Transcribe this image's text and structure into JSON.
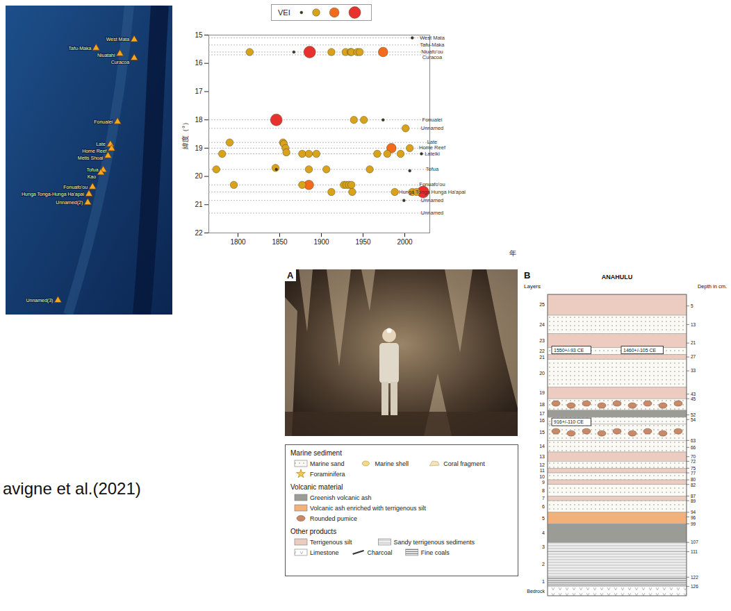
{
  "map": {
    "xlim": [
      -178.5,
      -171.5
    ],
    "ylim": [
      13.9,
      24.8
    ],
    "volcanoes": [
      {
        "name": "West Mata",
        "lat": 15.1,
        "lon": -173.1
      },
      {
        "name": "Tafu-Maka",
        "lat": 15.4,
        "lon": -174.7
      },
      {
        "name": "Niuatahi",
        "lat": 15.6,
        "lon": -173.7
      },
      {
        "name": "Curacoa",
        "lat": 15.75,
        "lon": -173.1
      },
      {
        "name": "Fonualei",
        "lat": 18.0,
        "lon": -173.8
      },
      {
        "name": "Late",
        "lat": 18.8,
        "lon": -174.1
      },
      {
        "name": "Home Reef",
        "lat": 18.95,
        "lon": -174.05
      },
      {
        "name": "Metis Shoal",
        "lat": 19.2,
        "lon": -174.2
      },
      {
        "name": "Tofua",
        "lat": 19.7,
        "lon": -174.4
      },
      {
        "name": "Kao",
        "lat": 19.8,
        "lon": -174.5
      },
      {
        "name": "Fonuafo'ou",
        "lat": 20.3,
        "lon": -174.85
      },
      {
        "name": "Hunga Tonga-Hunga Ha'apai",
        "lat": 20.55,
        "lon": -175.0
      },
      {
        "name": "Unnamed(2)",
        "lat": 20.85,
        "lon": -175.05
      },
      {
        "name": "Unnamed(3)",
        "lat": 24.3,
        "lon": -176.3
      }
    ]
  },
  "chart_data": {
    "type": "scatter",
    "x_label": "年",
    "y_label": "緯度（°）",
    "xlim": [
      1765,
      2030
    ],
    "ylim": [
      15,
      22
    ],
    "xticks": [
      1800,
      1850,
      1900,
      1950,
      2000
    ],
    "yticks": [
      15,
      16,
      17,
      18,
      19,
      20,
      21,
      22
    ],
    "grid": false,
    "legend": "top",
    "vei_scale": {
      "title": "VEI",
      "levels": [
        0,
        2,
        3,
        4
      ],
      "colors": [
        "#333333",
        "#d9a21b",
        "#f26b1d",
        "#e8312f"
      ]
    },
    "volcanoes": [
      {
        "name": "West Mata",
        "lat": 15.1
      },
      {
        "name": "Tafu-Maka",
        "lat": 15.35
      },
      {
        "name": "Niuafo'ou",
        "lat": 15.6
      },
      {
        "name": "Curacoa",
        "lat": 15.7
      },
      {
        "name": "Fonualei",
        "lat": 18.0
      },
      {
        "name": "Unnamed",
        "lat": 18.3
      },
      {
        "name": "Late",
        "lat": 18.8
      },
      {
        "name": "Home Reef",
        "lat": 19.0
      },
      {
        "name": "Lateiki",
        "lat": 19.2
      },
      {
        "name": "Tofua",
        "lat": 19.75
      },
      {
        "name": "Fonuafo'ou",
        "lat": 20.3
      },
      {
        "name": "Hunga Tonga Hunga Ha'apai",
        "lat": 20.55
      },
      {
        "name": "Unnamed",
        "lat": 20.85
      },
      {
        "name": "Unnamed",
        "lat": 21.3
      }
    ],
    "points": {
      "x": [
        1814,
        1867,
        1886,
        1912,
        1929,
        1935,
        1936,
        1943,
        1946,
        1974,
        2009,
        1846,
        1939,
        1951,
        1974,
        2001,
        1790,
        1854,
        1855,
        1857,
        1858,
        1781,
        1877,
        1885,
        1894,
        1967,
        1979,
        1984,
        1995,
        2006,
        2020,
        1774,
        1845,
        1846,
        1885,
        1906,
        1958,
        2006,
        1795,
        1877,
        1885,
        1927,
        1930,
        1933,
        1936,
        1912,
        1937,
        1988,
        2009,
        2014,
        2022,
        1999
      ],
      "y": [
        15.6,
        15.6,
        15.6,
        15.6,
        15.6,
        15.6,
        15.6,
        15.6,
        15.6,
        15.6,
        15.1,
        18.0,
        18.0,
        18.0,
        18.0,
        18.3,
        18.8,
        18.8,
        18.85,
        19.0,
        19.15,
        19.2,
        19.2,
        19.2,
        19.2,
        19.2,
        19.2,
        19.0,
        19.2,
        19.0,
        19.2,
        19.75,
        19.7,
        19.75,
        19.75,
        19.75,
        19.75,
        19.8,
        20.3,
        20.3,
        20.3,
        20.3,
        20.3,
        20.3,
        20.3,
        20.55,
        20.55,
        20.55,
        20.55,
        20.55,
        20.55,
        20.85
      ],
      "vei": [
        2,
        0,
        4,
        2,
        2,
        2,
        2,
        2,
        2,
        3,
        0,
        4,
        2,
        2,
        0,
        2,
        2,
        2,
        2,
        2,
        2,
        2,
        2,
        2,
        2,
        2,
        2,
        3,
        2,
        2,
        0,
        2,
        2,
        0,
        2,
        2,
        2,
        0,
        2,
        2,
        3,
        2,
        2,
        2,
        2,
        2,
        2,
        2,
        2,
        2,
        4,
        0
      ]
    }
  },
  "photo": {
    "panel_label": "A"
  },
  "photo_legend": {
    "groups": [
      {
        "title": "Marine sediment",
        "items": [
          "Marine sand",
          "Marine shell",
          "Coral fragment",
          "Foraminifera"
        ]
      },
      {
        "title": "Volcanic material",
        "items": [
          "Greenish volcanic ash",
          "Volcanic ash enriched with terrigenous silt",
          "Rounded pumice"
        ]
      },
      {
        "title": "Other products",
        "items": [
          "Terrigenous silt",
          "Sandy terrigenous sediments",
          "Limestone",
          "Charcoal",
          "Fine coals"
        ]
      }
    ]
  },
  "stratigraphy": {
    "panel_label": "B",
    "title": "ANAHULU",
    "layers_header": "Layers",
    "depth_header": "Depth in cm.",
    "depth_range": [
      0,
      130
    ],
    "layers": [
      {
        "label": "25",
        "top": 0,
        "bottom": 9,
        "material": "Terrigenous silt"
      },
      {
        "label": "24",
        "top": 9,
        "bottom": 17,
        "material": "Marine sand"
      },
      {
        "label": "23",
        "top": 17,
        "bottom": 23,
        "material": "Terrigenous silt"
      },
      {
        "label": "22",
        "top": 23,
        "bottom": 26,
        "material": "Marine sand"
      },
      {
        "label": "21",
        "top": 26,
        "bottom": 28,
        "material": "Terrigenous silt"
      },
      {
        "label": "20",
        "top": 28,
        "bottom": 40,
        "material": "Marine sand"
      },
      {
        "label": "19",
        "top": 40,
        "bottom": 45,
        "material": "Terrigenous silt"
      },
      {
        "label": "18",
        "top": 45,
        "bottom": 50,
        "material": "Rounded pumice"
      },
      {
        "label": "17",
        "top": 50,
        "bottom": 53,
        "material": "Greenish volcanic ash"
      },
      {
        "label": "16",
        "top": 53,
        "bottom": 56,
        "material": "Marine sand"
      },
      {
        "label": "15",
        "top": 56,
        "bottom": 63,
        "material": "Rounded pumice"
      },
      {
        "label": "14",
        "top": 63,
        "bottom": 68,
        "material": "Marine sand"
      },
      {
        "label": "13",
        "top": 68,
        "bottom": 72,
        "material": "Terrigenous silt"
      },
      {
        "label": "12",
        "top": 72,
        "bottom": 75,
        "material": "Marine sand"
      },
      {
        "label": "11",
        "top": 75,
        "bottom": 77,
        "material": "Terrigenous silt"
      },
      {
        "label": "10",
        "top": 77,
        "bottom": 80,
        "material": "Marine sand"
      },
      {
        "label": "9",
        "top": 80,
        "bottom": 82,
        "material": "Terrigenous silt"
      },
      {
        "label": "8",
        "top": 82,
        "bottom": 87,
        "material": "Marine sand"
      },
      {
        "label": "7",
        "top": 87,
        "bottom": 89,
        "material": "Terrigenous silt"
      },
      {
        "label": "6",
        "top": 89,
        "bottom": 94,
        "material": "Marine sand"
      },
      {
        "label": "5",
        "top": 94,
        "bottom": 99,
        "material": "Volcanic ash enriched with terrigenous silt"
      },
      {
        "label": "4",
        "top": 99,
        "bottom": 107,
        "material": "Greenish volcanic ash"
      },
      {
        "label": "3",
        "top": 107,
        "bottom": 111,
        "material": "Sandy terrigenous sediments"
      },
      {
        "label": "2",
        "top": 111,
        "bottom": 122,
        "material": "Sandy terrigenous sediments"
      },
      {
        "label": "1",
        "top": 122,
        "bottom": 126,
        "material": "Fine coals"
      },
      {
        "label": "Bedrock",
        "top": 126,
        "bottom": 130,
        "material": "Limestone"
      }
    ],
    "depth_labels": [
      5,
      13,
      21,
      27,
      33,
      43,
      45,
      52,
      54,
      63,
      66,
      70,
      72,
      75,
      77,
      80,
      82,
      87,
      89,
      94,
      96,
      99,
      107,
      111,
      122,
      126
    ],
    "dates": [
      {
        "text": "1550+/-93 CE",
        "depth": 24
      },
      {
        "text": "1460+/-105 CE",
        "depth": 24
      },
      {
        "text": "916+/-110 CE",
        "depth": 55
      }
    ]
  },
  "caption": "avigne et al.(2021)"
}
